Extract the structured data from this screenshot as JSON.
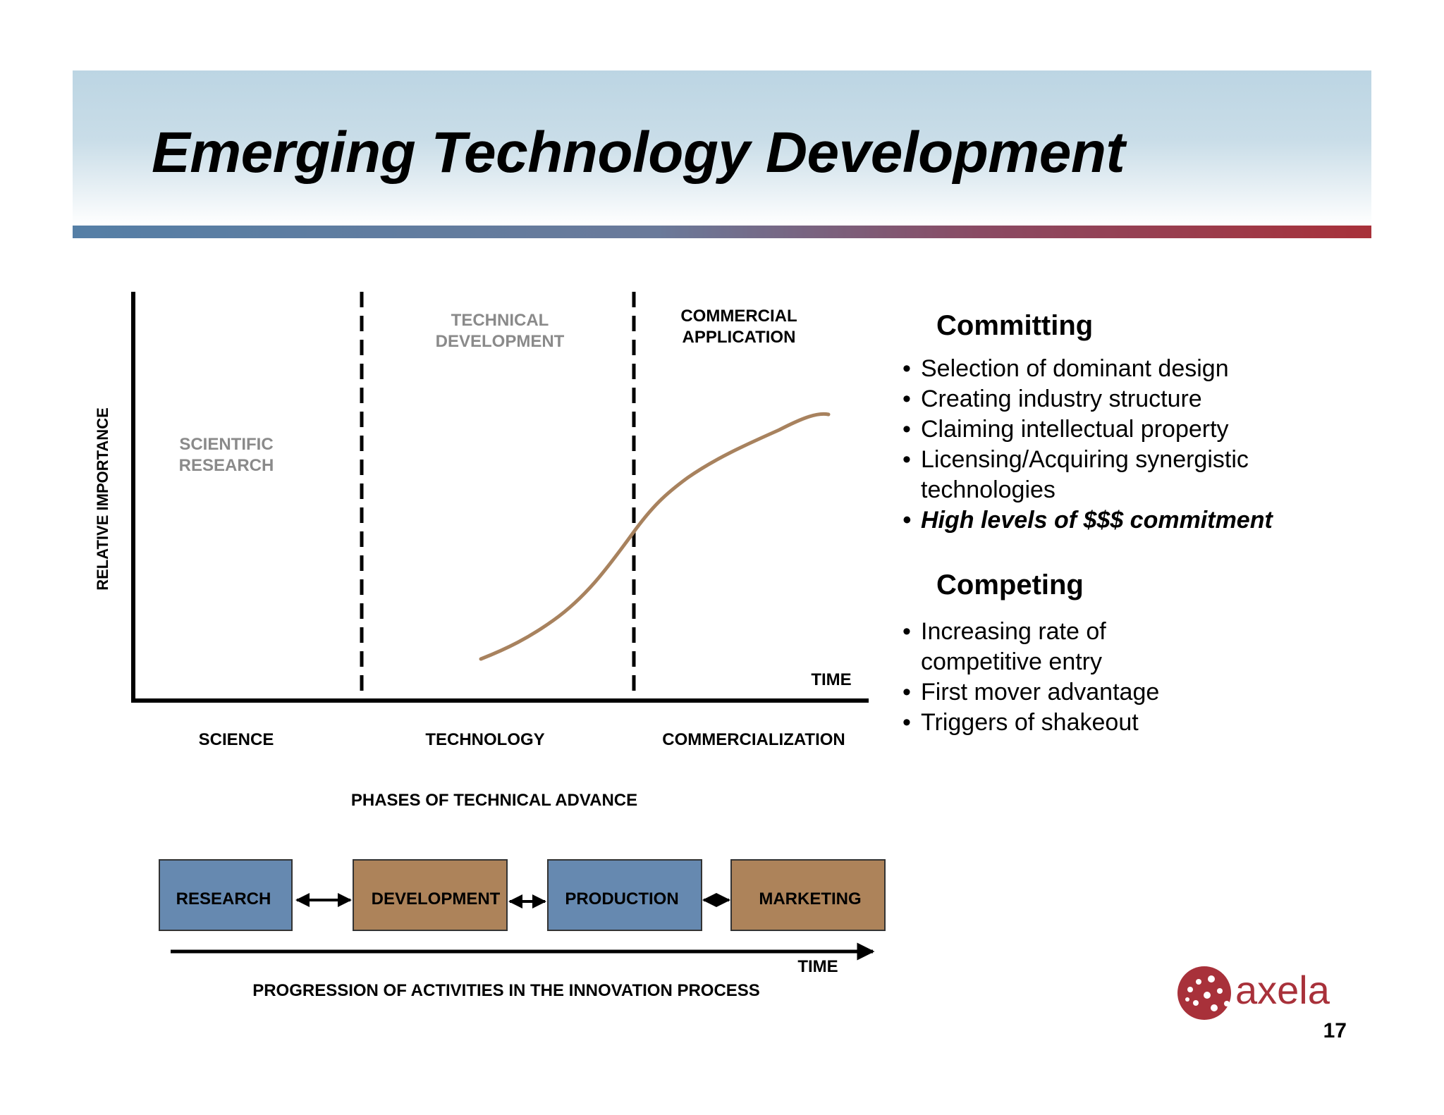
{
  "title": "Emerging Technology Development",
  "colors": {
    "header_band": "#bcd5e3",
    "rule_left": "#557fa6",
    "rule_right": "#a8313a",
    "curve": "#a8825e",
    "box_blue": "#6689b0",
    "box_brown": "#ad835a",
    "label_grey": "#8a8a8a",
    "brand_red": "#a8313a"
  },
  "diagram": {
    "y_axis_label": "RELATIVE IMPORTANCE",
    "time_label": "TIME",
    "regions": {
      "scientific": [
        "SCIENTIFIC",
        "RESEARCH"
      ],
      "technical": [
        "TECHNICAL",
        "DEVELOPMENT"
      ],
      "commercial": [
        "COMMERCIAL",
        "APPLICATION"
      ]
    },
    "phases": [
      "SCIENCE",
      "TECHNOLOGY",
      "COMMERCIALIZATION"
    ],
    "phases_caption": "PHASES OF TECHNICAL ADVANCE"
  },
  "process": {
    "boxes": [
      "RESEARCH",
      "DEVELOPMENT",
      "PRODUCTION",
      "MARKETING"
    ],
    "time_label": "TIME",
    "caption": "PROGRESSION OF ACTIVITIES IN THE INNOVATION PROCESS"
  },
  "committing": {
    "heading": "Committing",
    "items": [
      "Selection of dominant design",
      "Creating industry structure",
      "Claiming intellectual property",
      "Licensing/Acquiring  synergistic",
      "technologies",
      "High levels of $$$ commitment"
    ]
  },
  "competing": {
    "heading": "Competing",
    "items": [
      "Increasing rate of",
      "competitive entry",
      "First mover advantage",
      "Triggers of shakeout"
    ]
  },
  "logo": {
    "text": "axela"
  },
  "page_number": "17"
}
